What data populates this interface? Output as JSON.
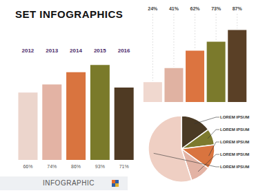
{
  "title": "SET INFOGRAPHICS",
  "footer": "INFOGRAPHIC",
  "chart_data": [
    {
      "type": "bar",
      "categories": [
        "2012",
        "2013",
        "2014",
        "2015",
        "2016"
      ],
      "values": [
        66,
        74,
        86,
        93,
        71
      ],
      "value_labels": [
        "66%",
        "74%",
        "86%",
        "93%",
        "71%"
      ],
      "data_labels": true,
      "tick_labels": "x",
      "ylim": [
        0,
        100
      ],
      "colors": [
        "#ecd5cc",
        "#e3b3a4",
        "#d9743f",
        "#7a7a2a",
        "#4f3a23"
      ]
    },
    {
      "type": "bar",
      "categories": [
        null,
        null,
        null,
        null,
        null
      ],
      "values": [
        24,
        41,
        62,
        73,
        87
      ],
      "value_labels": [
        "24%",
        "41%",
        "62%",
        "73%",
        "87%"
      ],
      "data_labels": true,
      "tick_labels": false,
      "ylim": [
        0,
        100
      ],
      "colors": [
        "#f0d8cf",
        "#e0b2a2",
        "#dc7440",
        "#7b7a2c",
        "#5a4026"
      ]
    },
    {
      "type": "pie",
      "categories": [
        "LOREM IPSUM",
        "LOREM IPSUM",
        "LOREM IPSUM",
        "LOREM IPSUM",
        "LOREM IPSUM"
      ],
      "values": [
        15,
        8,
        12,
        10,
        55
      ],
      "colors": [
        "#4a3a24",
        "#7d7a2e",
        "#d9743f",
        "#e3b3a4",
        "#efcfc3"
      ]
    }
  ]
}
